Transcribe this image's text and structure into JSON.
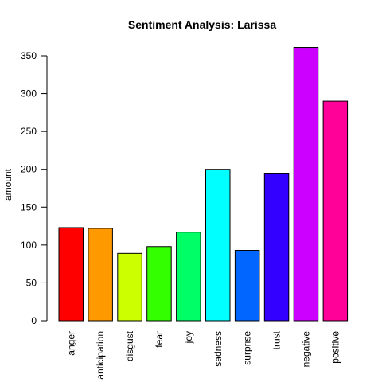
{
  "chart_data": {
    "type": "bar",
    "title": "Sentiment Analysis: Larissa",
    "xlabel": "",
    "ylabel": "amount",
    "categories": [
      "anger",
      "anticipation",
      "disgust",
      "fear",
      "joy",
      "sadness",
      "surprise",
      "trust",
      "negative",
      "positive"
    ],
    "values": [
      123,
      122,
      89,
      98,
      117,
      200,
      93,
      194,
      361,
      290
    ],
    "colors": [
      "#FF0000",
      "#FF9900",
      "#CCFF00",
      "#33FF00",
      "#00FF66",
      "#00FFFF",
      "#0066FF",
      "#3300FF",
      "#CC00FF",
      "#FF0099"
    ],
    "ylim": [
      0,
      370
    ],
    "yticks": [
      0,
      50,
      100,
      150,
      200,
      250,
      300,
      350
    ],
    "grid": false,
    "legend": "none"
  }
}
